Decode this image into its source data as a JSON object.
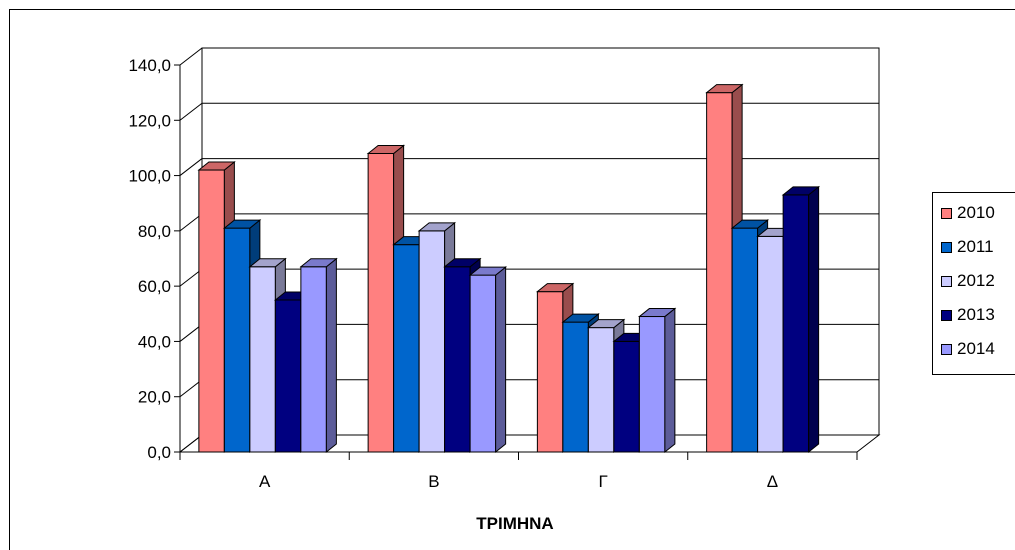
{
  "chart_data": {
    "type": "bar",
    "title": "",
    "xlabel": "ΤΡΙΜΗΝΑ",
    "ylabel": "",
    "categories": [
      "Α",
      "Β",
      "Γ",
      "Δ"
    ],
    "ylim": [
      0,
      140
    ],
    "yticks": [
      "0,0",
      "20,0",
      "40,0",
      "60,0",
      "80,0",
      "100,0",
      "120,0",
      "140,0"
    ],
    "grid": true,
    "legend_position": "right",
    "three_d": true,
    "series": [
      {
        "name": "2010",
        "color": "#ff8080",
        "values": [
          102,
          108,
          58,
          130
        ]
      },
      {
        "name": "2011",
        "color": "#0066cc",
        "values": [
          81,
          75,
          47,
          81
        ]
      },
      {
        "name": "2012",
        "color": "#ccccff",
        "values": [
          67,
          80,
          45,
          78
        ]
      },
      {
        "name": "2013",
        "color": "#000080",
        "values": [
          55,
          67,
          40,
          93
        ]
      },
      {
        "name": "2014",
        "color": "#9999ff",
        "values": [
          67,
          64,
          49,
          null
        ]
      }
    ]
  }
}
